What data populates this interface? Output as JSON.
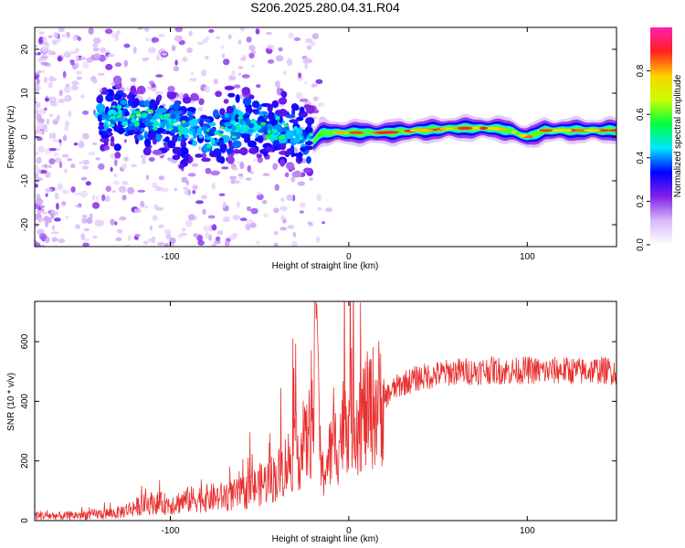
{
  "title": "S206.2025.280.04.31.R04",
  "chart_data": [
    {
      "type": "heatmap",
      "xlabel": "Height of straight line (km)",
      "ylabel": "Frequency (Hz)",
      "xlim": [
        -176,
        150
      ],
      "ylim": [
        -25,
        25
      ],
      "xticks": [
        -100,
        0,
        100
      ],
      "xtick_labels": [
        "-100",
        "0",
        "100"
      ],
      "yticks": [
        -20,
        -10,
        0,
        10,
        20
      ],
      "ytick_labels": [
        "-20",
        "-10",
        "0",
        "10",
        "20"
      ],
      "centerline": {
        "x": [
          -176,
          -140,
          -120,
          -100,
          -80,
          -60,
          -40,
          -25,
          -20,
          -15,
          0,
          20,
          40,
          60,
          80,
          90,
          100,
          110,
          120,
          150
        ],
        "y": [
          5,
          5,
          4,
          3,
          0,
          3,
          2,
          0,
          -1,
          1,
          1,
          1,
          1.5,
          2,
          2,
          1.5,
          0,
          1.5,
          1.5,
          1.5
        ]
      },
      "colorbar": {
        "label": "Normalized spectral amplitude",
        "range": [
          0,
          1
        ],
        "ticks": [
          0.0,
          0.2,
          0.4,
          0.6,
          0.8
        ],
        "tick_labels": [
          "0.0",
          "0.2",
          "0.4",
          "0.6",
          "0.8"
        ],
        "colors": [
          "#ffffff",
          "#d8b8f8",
          "#8020e8",
          "#0000ff",
          "#00e8ff",
          "#00ff40",
          "#c8ff00",
          "#ffd000",
          "#ff2020",
          "#ff20b0"
        ]
      }
    },
    {
      "type": "line",
      "xlabel": "Height of straight line (km)",
      "ylabel": "SNR (10 * v/v)",
      "xlim": [
        -176,
        150
      ],
      "ylim": [
        0,
        735
      ],
      "xticks": [
        -100,
        0,
        100
      ],
      "xtick_labels": [
        "-100",
        "0",
        "100"
      ],
      "yticks": [
        0,
        200,
        400,
        600
      ],
      "ytick_labels": [
        "0",
        "200",
        "400",
        "600"
      ],
      "color": "#e83030",
      "series": [
        {
          "name": "SNR",
          "x": [
            -176,
            -160,
            -140,
            -130,
            -120,
            -110,
            -100,
            -90,
            -80,
            -70,
            -60,
            -50,
            -40,
            -30,
            -25,
            -20,
            -18,
            -17,
            -16,
            -15,
            -10,
            -5,
            0,
            5,
            10,
            15,
            20,
            25,
            30,
            40,
            50,
            60,
            70,
            80,
            90,
            100,
            110,
            120,
            130,
            140,
            150
          ],
          "y": [
            18,
            15,
            22,
            25,
            45,
            60,
            55,
            70,
            75,
            80,
            90,
            120,
            150,
            230,
            240,
            330,
            730,
            520,
            200,
            150,
            230,
            280,
            380,
            350,
            360,
            390,
            410,
            440,
            460,
            480,
            490,
            500,
            500,
            505,
            500,
            505,
            500,
            505,
            500,
            505,
            500
          ]
        }
      ]
    }
  ]
}
